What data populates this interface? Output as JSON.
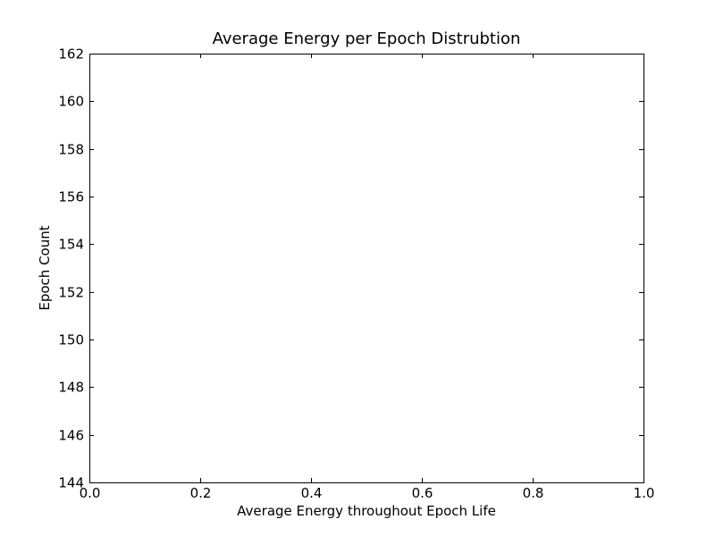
{
  "chart_data": {
    "type": "bar",
    "title": "Average Energy per Epoch Distrubtion",
    "xlabel": "Average Energy throughout Epoch Life",
    "ylabel": "Epoch Count",
    "xlim": [
      0.0,
      1.0
    ],
    "ylim": [
      144,
      162
    ],
    "xticks": [
      "0.0",
      "0.2",
      "0.4",
      "0.6",
      "0.8",
      "1.0"
    ],
    "yticks": [
      "144",
      "146",
      "148",
      "150",
      "152",
      "154",
      "156",
      "158",
      "160",
      "162"
    ],
    "grid": false,
    "series": [],
    "colors": {
      "axis": "#000000",
      "background": "#ffffff"
    }
  }
}
